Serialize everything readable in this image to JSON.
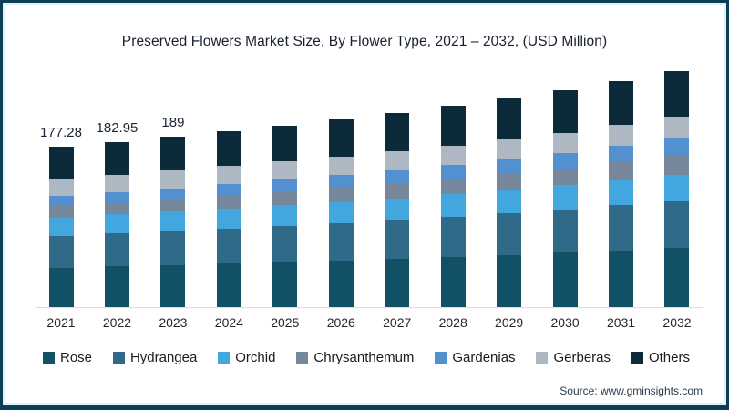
{
  "chart": {
    "title": "Preserved Flowers Market Size, By Flower Type, 2021 – 2032, (USD Million)",
    "source": "Source: www.gminsights.com",
    "frame_border_color": "#0d3e55",
    "axis_line_color": "#dcdfe2"
  },
  "chart_data": {
    "type": "bar",
    "stacked": true,
    "title": "Preserved Flowers Market Size, By Flower Type, 2021 – 2032, (USD Million)",
    "unit": "USD Million",
    "categories": [
      "2021",
      "2022",
      "2023",
      "2024",
      "2025",
      "2026",
      "2027",
      "2028",
      "2029",
      "2030",
      "2031",
      "2032"
    ],
    "series": [
      {
        "name": "Rose",
        "color": "#125066",
        "values": [
          43.6,
          45.1,
          46.7,
          48.2,
          49.9,
          51.6,
          53.6,
          55.7,
          57.9,
          60.4,
          63.0,
          65.9
        ]
      },
      {
        "name": "Hydrangea",
        "color": "#2f6b88",
        "values": [
          35.5,
          36.6,
          37.7,
          38.8,
          40.0,
          41.3,
          42.7,
          44.3,
          45.9,
          47.7,
          49.7,
          51.8
        ]
      },
      {
        "name": "Orchid",
        "color": "#41a7de",
        "values": [
          20.4,
          21.0,
          21.6,
          22.2,
          22.9,
          23.6,
          24.3,
          25.1,
          26.0,
          26.9,
          28.0,
          29.3
        ]
      },
      {
        "name": "Chrysanthemum",
        "color": "#76879b",
        "values": [
          12.2,
          12.8,
          13.5,
          14.1,
          14.7,
          15.5,
          16.2,
          17.1,
          18.0,
          19.0,
          20.0,
          21.2
        ]
      },
      {
        "name": "Gardenias",
        "color": "#5290d0",
        "values": [
          11.2,
          11.7,
          12.3,
          12.8,
          13.5,
          14.1,
          14.8,
          15.6,
          16.4,
          17.3,
          18.3,
          19.4
        ]
      },
      {
        "name": "Gerberas",
        "color": "#adb8c2",
        "values": [
          19.1,
          19.4,
          19.8,
          20.0,
          20.3,
          20.6,
          21.0,
          21.4,
          21.8,
          22.2,
          22.7,
          23.3
        ]
      },
      {
        "name": "Others",
        "color": "#0c2a3a",
        "values": [
          35.5,
          36.5,
          37.6,
          38.6,
          39.8,
          41.0,
          42.3,
          43.8,
          45.3,
          46.9,
          48.7,
          50.7
        ]
      }
    ],
    "totals_estimated": [
      177.28,
      182.95,
      189,
      194.6,
      200.9,
      207.6,
      214.9,
      222.8,
      231.4,
      240.6,
      250.7,
      261.5
    ],
    "bar_total_labels": {
      "2021": "177.28",
      "2022": "182.95",
      "2023": "189"
    },
    "legend_position": "bottom",
    "grid": false,
    "ylim": [
      0,
      270
    ]
  }
}
